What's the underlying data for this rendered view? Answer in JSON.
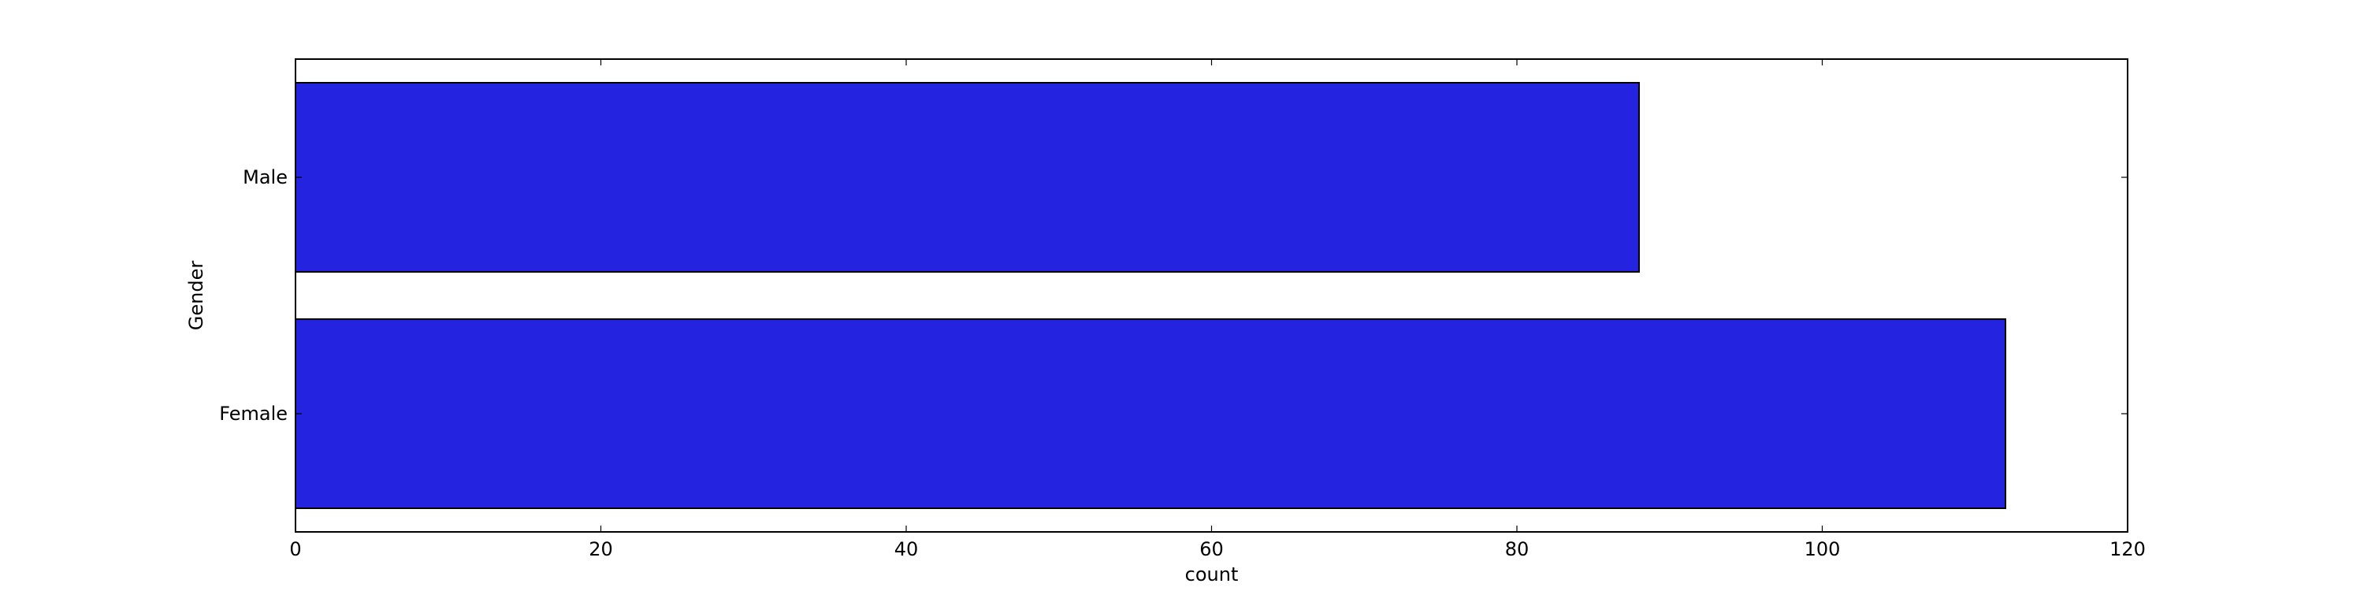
{
  "chart_data": {
    "type": "bar",
    "orientation": "horizontal",
    "title": "",
    "xlabel": "count",
    "ylabel": "Gender",
    "categories": [
      "Male",
      "Female"
    ],
    "values": [
      88,
      112
    ],
    "xlim": [
      0,
      120
    ],
    "xticks": [
      0,
      20,
      40,
      60,
      80,
      100,
      120
    ],
    "grid": false,
    "legend": "none",
    "bar_color": "#2323e0",
    "edge_color": "#000000"
  }
}
